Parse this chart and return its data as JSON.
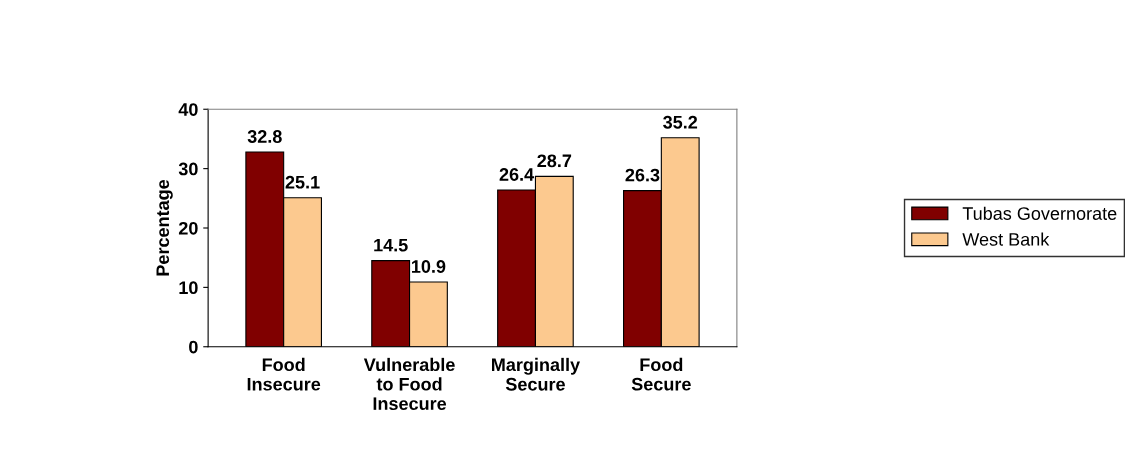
{
  "chart_data": {
    "type": "bar",
    "ylabel": "Percentage",
    "categories": [
      "Food\nInsecure",
      "Vulnerable\nto Food\nInsecure",
      "Marginally\nSecure",
      "Food\nSecure"
    ],
    "series": [
      {
        "name": "Tubas Governorate",
        "color": "#800000",
        "values": [
          32.8,
          14.5,
          26.4,
          26.3
        ]
      },
      {
        "name": "West Bank",
        "color": "#fcc98f",
        "values": [
          25.1,
          10.9,
          28.7,
          35.2
        ]
      }
    ],
    "ylim": [
      0,
      40
    ],
    "yticks": [
      0,
      10,
      20,
      30,
      40
    ],
    "grid": false,
    "legend": "right",
    "data_labels": true
  }
}
